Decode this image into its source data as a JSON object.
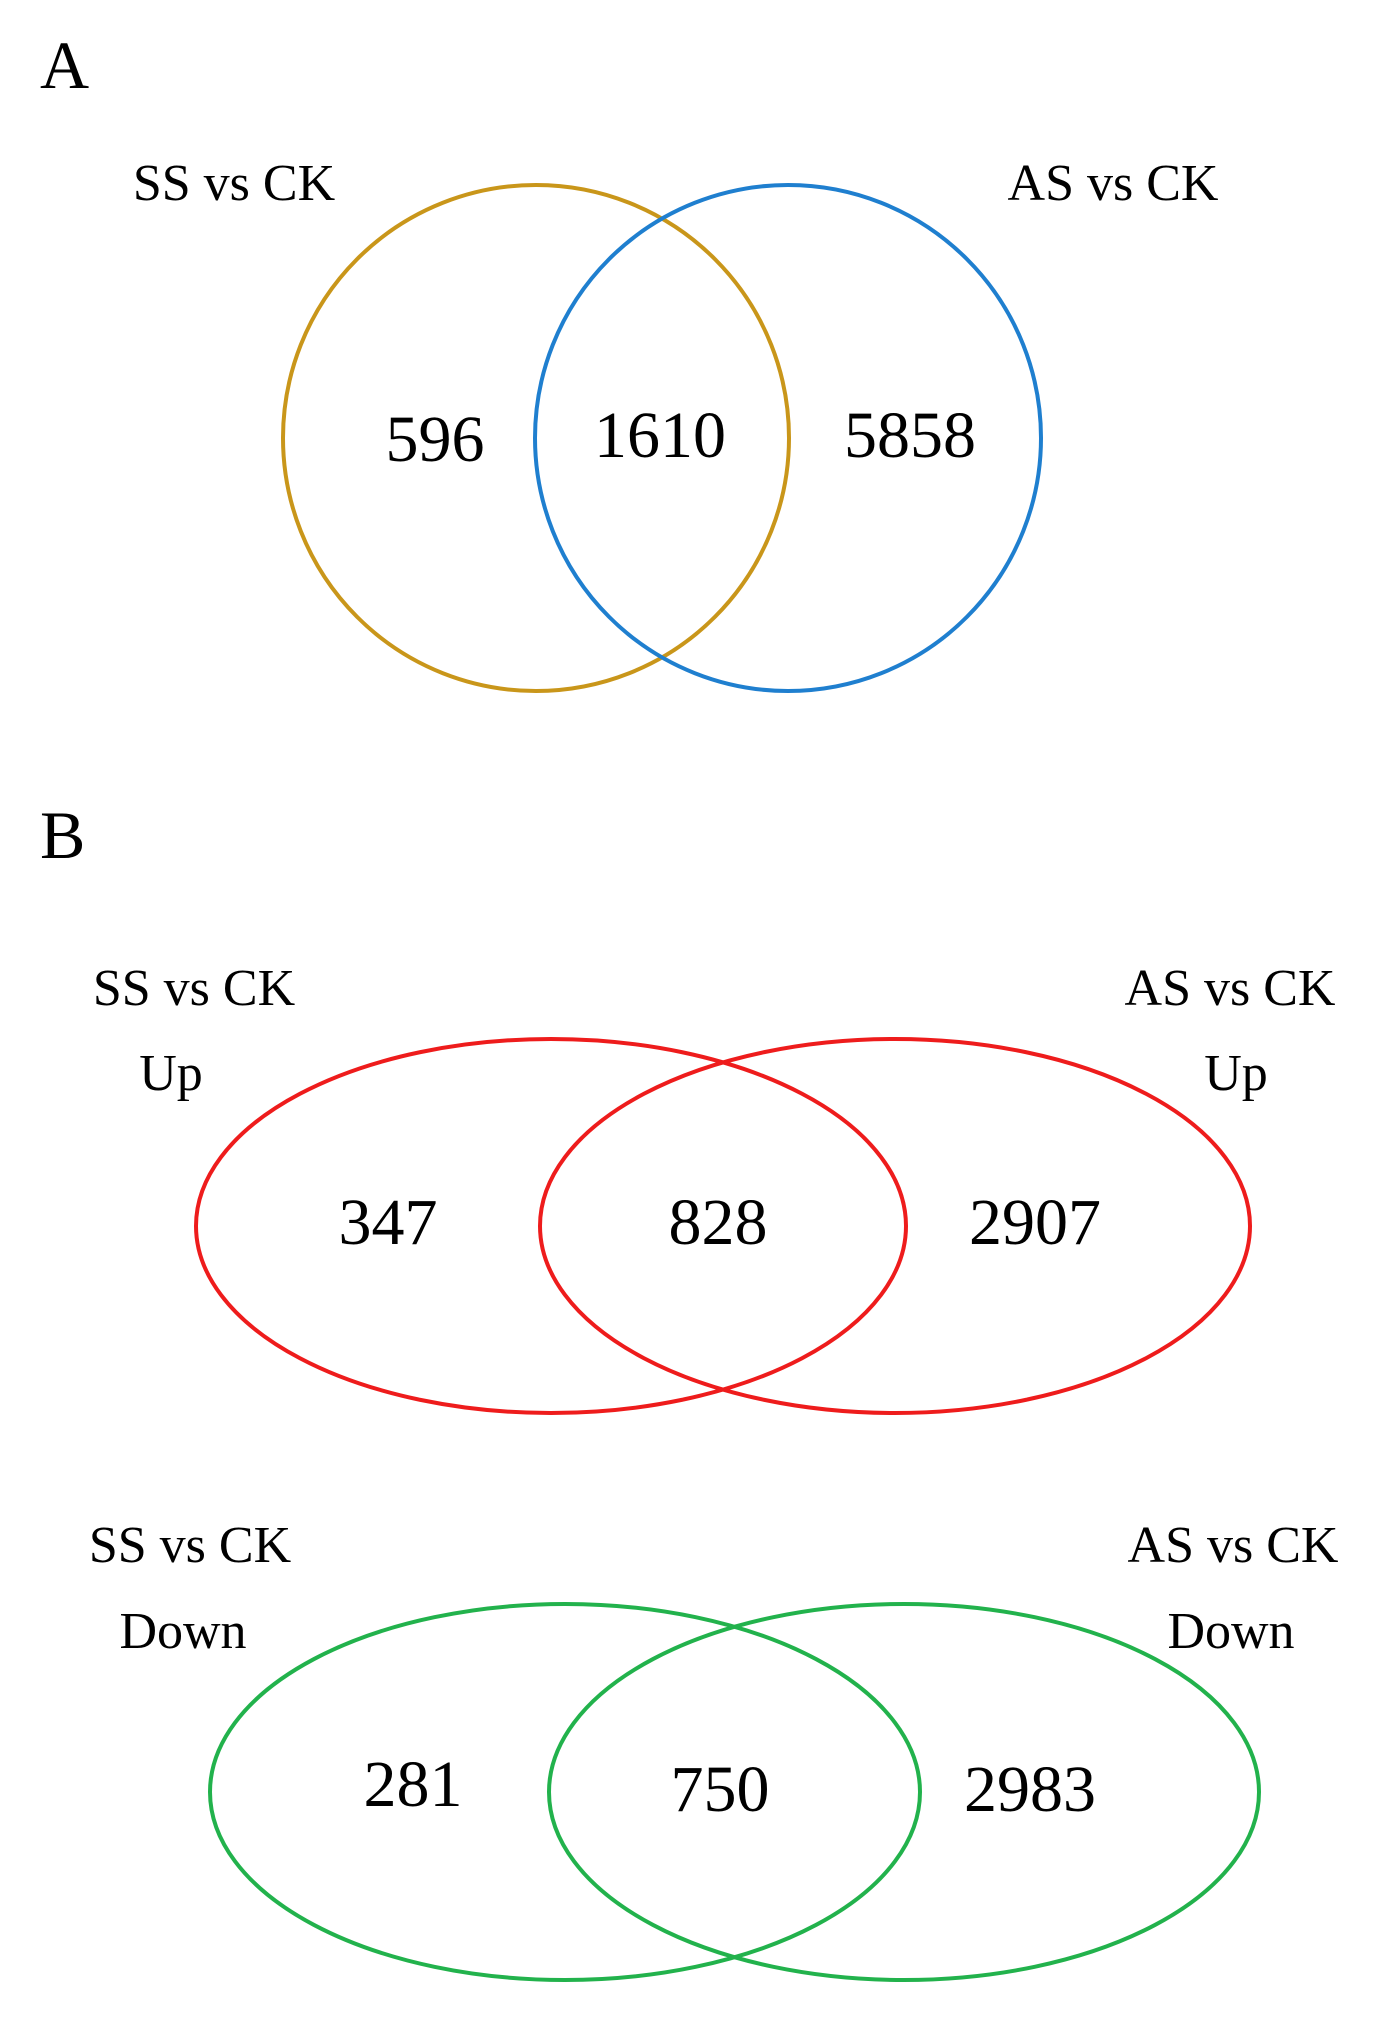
{
  "panels": [
    {
      "label": "A",
      "sets": [
        {
          "label_lines": [
            "SS vs CK"
          ],
          "color": "#c9961a"
        },
        {
          "label_lines": [
            "AS vs CK"
          ],
          "color": "#1f7fcf"
        }
      ],
      "counts": {
        "left_only": "596",
        "both": "1610",
        "right_only": "5858"
      }
    },
    {
      "label": "B",
      "sets": [
        {
          "label_lines": [
            "SS vs CK",
            "Up"
          ],
          "color": "#ee1c1c"
        },
        {
          "label_lines": [
            "AS vs CK",
            "Up"
          ],
          "color": "#ee1c1c"
        }
      ],
      "counts": {
        "left_only": "347",
        "both": "828",
        "right_only": "2907"
      }
    },
    {
      "label": "",
      "sets": [
        {
          "label_lines": [
            "SS vs CK",
            "Down"
          ],
          "color": "#22b24c"
        },
        {
          "label_lines": [
            "AS vs CK",
            "Down"
          ],
          "color": "#22b24c"
        }
      ],
      "counts": {
        "left_only": "281",
        "both": "750",
        "right_only": "2983"
      }
    }
  ]
}
